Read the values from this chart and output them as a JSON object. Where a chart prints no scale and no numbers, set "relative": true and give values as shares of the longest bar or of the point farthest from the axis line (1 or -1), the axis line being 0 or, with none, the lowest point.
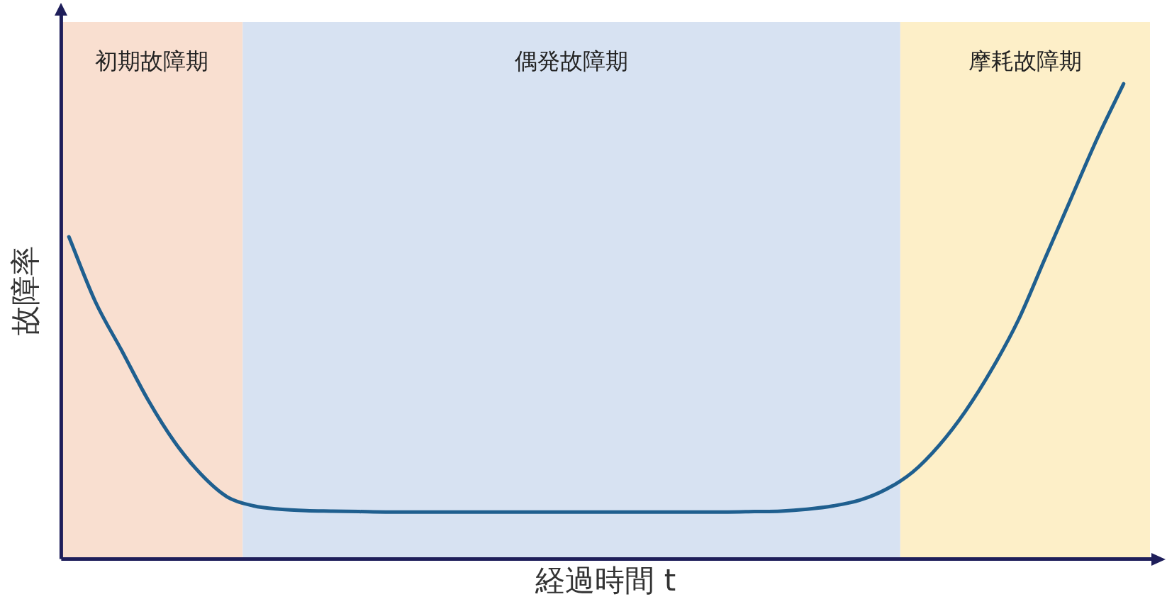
{
  "chart_data": {
    "type": "line",
    "relative": true,
    "xlabel": "経過時間 t",
    "ylabel": "故障率",
    "categories": [
      null,
      null,
      null,
      null,
      null,
      null,
      null,
      null,
      null,
      null,
      null,
      null,
      null,
      null,
      null,
      null,
      null,
      null,
      null,
      null,
      null,
      null,
      null,
      null,
      null,
      null,
      null,
      null,
      null,
      null,
      null,
      null,
      null,
      null,
      null,
      null,
      null,
      null,
      null,
      null,
      null
    ],
    "series": [
      {
        "color": "#1f5f8f",
        "values": [
          0.678,
          0.542,
          0.439,
          0.335,
          0.247,
          0.179,
          0.131,
          0.112,
          0.105,
          0.102,
          0.101,
          0.1,
          0.099,
          0.099,
          0.099,
          0.099,
          0.099,
          0.099,
          0.099,
          0.099,
          0.099,
          0.099,
          0.099,
          0.099,
          0.099,
          0.099,
          0.1,
          0.101,
          0.105,
          0.112,
          0.124,
          0.147,
          0.183,
          0.239,
          0.311,
          0.399,
          0.502,
          0.63,
          0.758,
          0.885,
          1.0
        ]
      }
    ],
    "annotations": [
      "初期故障期",
      "偶発故障期",
      "摩耗故障期"
    ],
    "grid": false,
    "legend": false,
    "marker": "none",
    "line_style": "solid"
  }
}
